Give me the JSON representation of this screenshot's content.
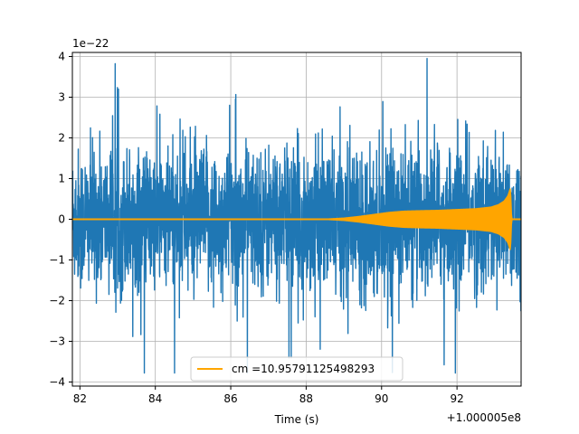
{
  "chart_data": {
    "type": "line",
    "title": "",
    "xlabel": "Time (s)",
    "ylabel": "",
    "x_offset_label": "+1.000005e8",
    "y_scale_label": "1e−22",
    "xlim": [
      81.8,
      93.7
    ],
    "ylim": [
      -4.1,
      4.1
    ],
    "grid": true,
    "x_ticks": [
      82,
      84,
      86,
      88,
      90,
      92
    ],
    "x_tick_labels": [
      "82",
      "84",
      "86",
      "88",
      "90",
      "92"
    ],
    "y_ticks": [
      -4,
      -3,
      -2,
      -1,
      0,
      1,
      2,
      3,
      4
    ],
    "y_tick_labels": [
      "−4",
      "−3",
      "−2",
      "−1",
      "0",
      "1",
      "2",
      "3",
      "4"
    ],
    "legend_position": "lower-center",
    "series": [
      {
        "color": "#1f77b4",
        "description_values": {
          "x": [
            81.8,
            93.7
          ],
          "typical_envelope": [
            -2.0,
            2.0
          ],
          "spike_max": 3.95,
          "spike_min": -3.78
        }
      },
      {
        "name": "cm =10.95791125498293",
        "color": "#ffa500",
        "x": [
          81.8,
          88.0,
          88.6,
          89.0,
          89.4,
          89.8,
          90.2,
          90.6,
          91.0,
          91.5,
          92.0,
          92.5,
          92.9,
          93.1,
          93.25,
          93.35,
          93.42,
          93.45,
          93.7
        ],
        "envelope": [
          0.0,
          0.0,
          0.01,
          0.03,
          0.07,
          0.12,
          0.17,
          0.2,
          0.21,
          0.22,
          0.24,
          0.26,
          0.3,
          0.36,
          0.45,
          0.58,
          0.78,
          0.0,
          0.0
        ]
      }
    ]
  }
}
